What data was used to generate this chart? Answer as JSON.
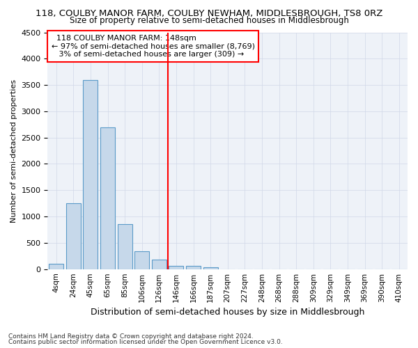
{
  "title": "118, COULBY MANOR FARM, COULBY NEWHAM, MIDDLESBROUGH, TS8 0RZ",
  "subtitle": "Size of property relative to semi-detached houses in Middlesbrough",
  "xlabel": "Distribution of semi-detached houses by size in Middlesbrough",
  "ylabel": "Number of semi-detached properties",
  "footer1": "Contains HM Land Registry data © Crown copyright and database right 2024.",
  "footer2": "Contains public sector information licensed under the Open Government Licence v3.0.",
  "categories": [
    "4sqm",
    "24sqm",
    "45sqm",
    "65sqm",
    "85sqm",
    "106sqm",
    "126sqm",
    "146sqm",
    "166sqm",
    "187sqm",
    "207sqm",
    "227sqm",
    "248sqm",
    "268sqm",
    "288sqm",
    "309sqm",
    "329sqm",
    "349sqm",
    "369sqm",
    "390sqm",
    "410sqm"
  ],
  "values": [
    100,
    1250,
    3600,
    2700,
    850,
    340,
    175,
    60,
    60,
    35,
    0,
    0,
    0,
    0,
    0,
    0,
    0,
    0,
    0,
    0,
    0
  ],
  "bar_color": "#c6d8ea",
  "bar_edge_color": "#5a9ac8",
  "vline_x_index": 7,
  "vline_color": "red",
  "ylim": [
    0,
    4500
  ],
  "yticks": [
    0,
    500,
    1000,
    1500,
    2000,
    2500,
    3000,
    3500,
    4000,
    4500
  ],
  "annotation_title": "118 COULBY MANOR FARM: 148sqm",
  "annotation_line1": "← 97% of semi-detached houses are smaller (8,769)",
  "annotation_line2": "   3% of semi-detached houses are larger (309) →",
  "annotation_box_color": "white",
  "annotation_box_edge": "red"
}
